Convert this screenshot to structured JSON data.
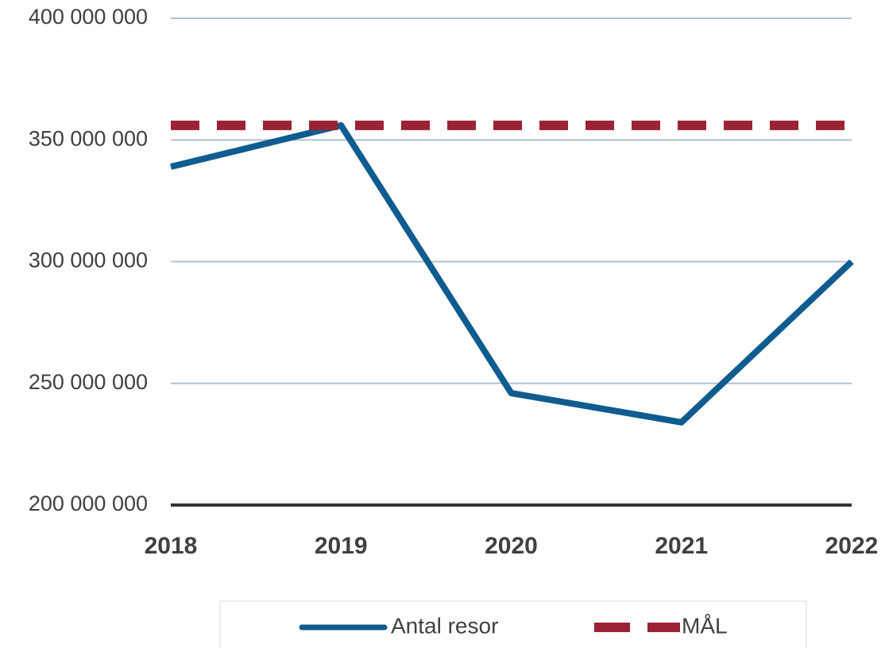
{
  "chart_data": {
    "type": "line",
    "categories": [
      "2018",
      "2019",
      "2020",
      "2021",
      "2022"
    ],
    "series": [
      {
        "name": "Antal resor",
        "color": "#0f5c8f",
        "values": [
          339000000,
          356000000,
          246000000,
          234000000,
          300000000
        ]
      },
      {
        "name": "MÅL",
        "color": "#9b2335",
        "dashed": true,
        "values": [
          356000000,
          356000000,
          356000000,
          356000000,
          356000000
        ]
      }
    ],
    "ylim": [
      200000000,
      400000000
    ],
    "yticks": [
      {
        "value": 200000000,
        "label": "200 000 000"
      },
      {
        "value": 250000000,
        "label": "250 000 000"
      },
      {
        "value": 300000000,
        "label": "300 000 000"
      },
      {
        "value": 350000000,
        "label": "350 000 000"
      },
      {
        "value": 400000000,
        "label": "400 000 000"
      }
    ],
    "grid": true,
    "legend": "bottom"
  }
}
